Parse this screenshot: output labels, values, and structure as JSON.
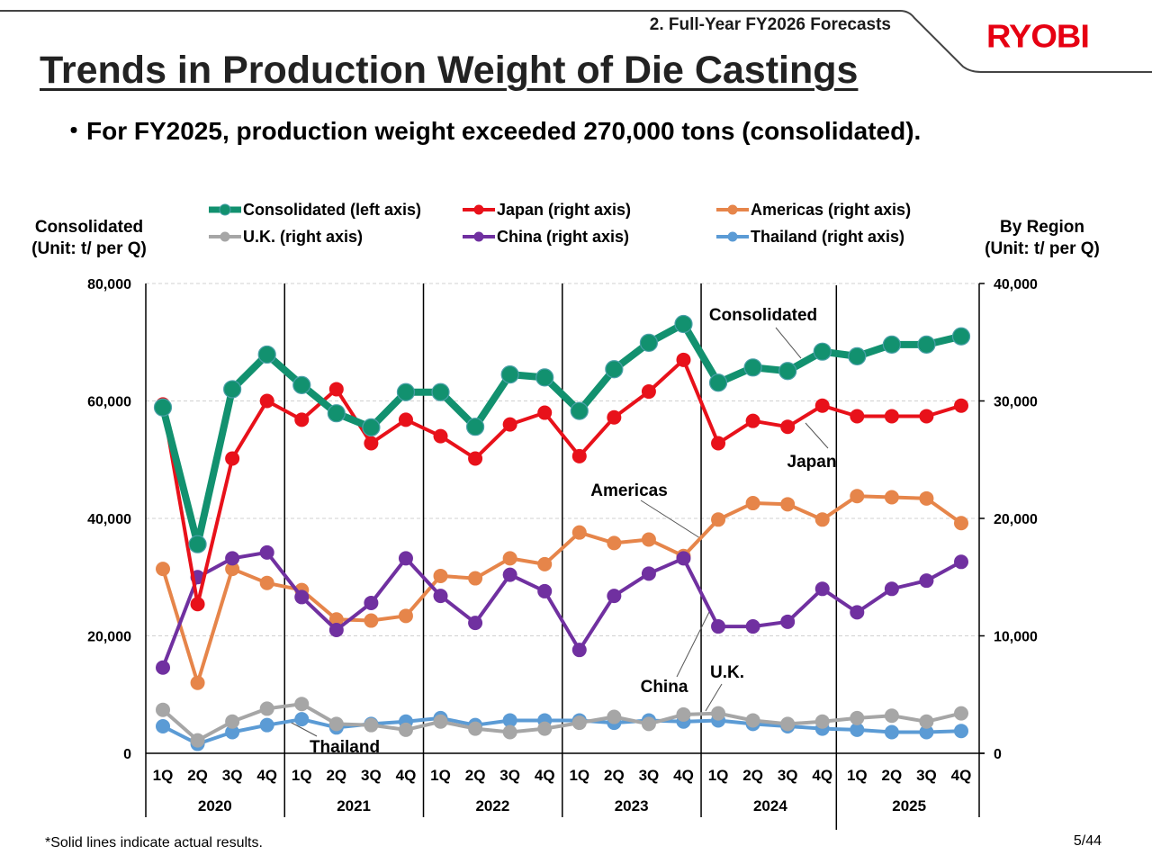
{
  "header": {
    "section": "2. Full-Year FY2026 Forecasts",
    "logo": "RYOBI",
    "title": "Trends in Production Weight of Die Castings",
    "bullet": "・For FY2025, production weight exceeded 270,000 tons (consolidated)."
  },
  "footer": {
    "note": "*Solid lines indicate actual results.",
    "page": "5/44"
  },
  "colors": {
    "consolidated": "#12916f",
    "japan": "#e8111a",
    "americas": "#e6854a",
    "uk": "#a6a6a6",
    "china": "#7030a0",
    "thailand": "#5b9bd5",
    "brand": "#e60012"
  },
  "chart_data": {
    "type": "line",
    "title": "",
    "left_axis_title": [
      "Consolidated",
      "(Unit: t/ per Q)"
    ],
    "right_axis_title": [
      "By Region",
      "(Unit: t/ per Q)"
    ],
    "left_ylim": [
      0,
      80000
    ],
    "right_ylim": [
      0,
      40000
    ],
    "left_ticks": [
      "0",
      "20,000",
      "40,000",
      "60,000",
      "80,000"
    ],
    "right_ticks": [
      "0",
      "10,000",
      "20,000",
      "30,000",
      "40,000"
    ],
    "grid": true,
    "legend_position": "top",
    "years": [
      "2020",
      "2021",
      "2022",
      "2023",
      "2024",
      "2025"
    ],
    "quarters": [
      "1Q",
      "2Q",
      "3Q",
      "4Q"
    ],
    "series": [
      {
        "key": "consolidated",
        "name": "Consolidated (left axis)",
        "axis": "left",
        "values": [
          58900,
          35600,
          62000,
          67900,
          62700,
          57900,
          55500,
          61500,
          61500,
          55600,
          64500,
          64000,
          58300,
          65400,
          69900,
          73100,
          63100,
          65700,
          65100,
          68400,
          67600,
          69600,
          69600,
          71000
        ]
      },
      {
        "key": "japan",
        "name": "Japan (right axis)",
        "axis": "right",
        "values": [
          29700,
          12700,
          25100,
          30000,
          28400,
          31000,
          26400,
          28400,
          27000,
          25100,
          28000,
          29000,
          25300,
          28600,
          30800,
          33500,
          26400,
          28300,
          27800,
          29600,
          28700,
          28700,
          28700,
          29600
        ]
      },
      {
        "key": "americas",
        "name": "Americas (right axis)",
        "axis": "right",
        "values": [
          15700,
          6000,
          15700,
          14500,
          13900,
          11400,
          11300,
          11700,
          15100,
          14900,
          16600,
          16100,
          18800,
          17900,
          18200,
          16800,
          19900,
          21300,
          21200,
          19900,
          21900,
          21800,
          21700,
          19600
        ]
      },
      {
        "key": "uk",
        "name": "U.K. (right axis)",
        "axis": "right",
        "values": [
          3700,
          1100,
          2700,
          3800,
          4200,
          2500,
          2400,
          2000,
          2700,
          2100,
          1800,
          2100,
          2600,
          3100,
          2500,
          3300,
          3400,
          2800,
          2500,
          2700,
          3000,
          3200,
          2700,
          3400
        ]
      },
      {
        "key": "china",
        "name": "China (right axis)",
        "axis": "right",
        "values": [
          7300,
          15000,
          16600,
          17100,
          13300,
          10500,
          12800,
          16600,
          13400,
          11100,
          15200,
          13800,
          8800,
          13400,
          15300,
          16600,
          10800,
          10800,
          11200,
          14000,
          12000,
          14000,
          14700,
          16300
        ]
      },
      {
        "key": "thailand",
        "name": "Thailand (right axis)",
        "axis": "right",
        "values": [
          2300,
          800,
          1800,
          2400,
          2900,
          2200,
          2500,
          2700,
          3000,
          2400,
          2800,
          2800,
          2800,
          2600,
          2800,
          2700,
          2800,
          2500,
          2300,
          2100,
          2000,
          1800,
          1800,
          1900
        ]
      }
    ],
    "annotations": [
      "Consolidated",
      "Japan",
      "Americas",
      "China",
      "U.K.",
      "Thailand"
    ]
  }
}
